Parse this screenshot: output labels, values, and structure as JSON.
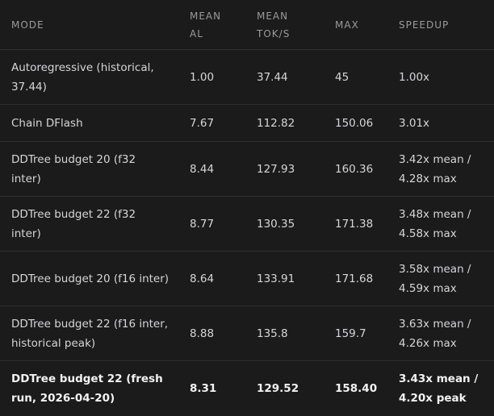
{
  "table": {
    "header": [
      [
        "MODE"
      ],
      [
        "MEAN",
        "AL"
      ],
      [
        "MEAN",
        "TOK/S"
      ],
      [
        "MAX"
      ],
      [
        "SPEEDUP"
      ]
    ],
    "rows": [
      [
        [
          "Autoregressive (historical,",
          "37.44)"
        ],
        [
          "1.00"
        ],
        [
          "37.44"
        ],
        [
          "45"
        ],
        [
          "1.00x"
        ]
      ],
      [
        [
          "Chain DFlash"
        ],
        [
          "7.67"
        ],
        [
          "112.82"
        ],
        [
          "150.06"
        ],
        [
          "3.01x"
        ]
      ],
      [
        [
          "DDTree budget 20 (f32",
          "inter)"
        ],
        [
          "8.44"
        ],
        [
          "127.93"
        ],
        [
          "160.36"
        ],
        [
          "3.42x mean /",
          "4.28x max"
        ]
      ],
      [
        [
          "DDTree budget 22 (f32",
          "inter)"
        ],
        [
          "8.77"
        ],
        [
          "130.35"
        ],
        [
          "171.38"
        ],
        [
          "3.48x mean /",
          "4.58x max"
        ]
      ],
      [
        [
          "DDTree budget 20 (f16 inter)"
        ],
        [
          "8.64"
        ],
        [
          "133.91"
        ],
        [
          "171.68"
        ],
        [
          "3.58x mean /",
          "4.59x max"
        ]
      ],
      [
        [
          "DDTree budget 22 (f16 inter,",
          "historical peak)"
        ],
        [
          "8.88"
        ],
        [
          "135.8"
        ],
        [
          "159.7"
        ],
        [
          "3.63x mean /",
          "4.26x max"
        ]
      ],
      [
        [
          "DDTree budget 22 (fresh",
          "run, 2026-04-20)"
        ],
        [
          "8.31"
        ],
        [
          "129.52"
        ],
        [
          "158.40"
        ],
        [
          "3.43x mean /",
          "4.20x peak"
        ]
      ]
    ],
    "bold_row": 6
  }
}
